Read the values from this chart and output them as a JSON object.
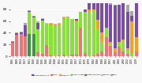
{
  "years": [
    1905,
    1909,
    1913,
    1917,
    1921,
    1926,
    1930,
    1935,
    1940,
    1944,
    1948,
    1952,
    1955,
    1959,
    1963,
    1967,
    1971,
    1975,
    1979,
    1982,
    1986,
    1989,
    1993,
    1997,
    2001,
    2004,
    2008,
    2012,
    2015,
    2019
  ],
  "series_order": [
    "Liberal",
    "United Farmers",
    "Social Credit",
    "NDP/CCF",
    "Conservative/UCP",
    "Labour",
    "Other"
  ],
  "series": {
    "Conservative/UCP": [
      2,
      2,
      2,
      19,
      1,
      2,
      11,
      2,
      0,
      0,
      0,
      0,
      0,
      0,
      0,
      3,
      0,
      4,
      20,
      35,
      38,
      59,
      51,
      63,
      72,
      62,
      72,
      61,
      10,
      63
    ],
    "Liberal": [
      23,
      37,
      38,
      34,
      0,
      0,
      7,
      5,
      19,
      2,
      0,
      2,
      3,
      1,
      3,
      3,
      49,
      6,
      1,
      2,
      4,
      8,
      32,
      18,
      7,
      17,
      9,
      5,
      1,
      9
    ],
    "NDP/CCF": [
      0,
      0,
      0,
      0,
      0,
      0,
      0,
      0,
      1,
      2,
      2,
      2,
      2,
      1,
      0,
      3,
      1,
      0,
      4,
      2,
      16,
      16,
      2,
      3,
      7,
      4,
      2,
      4,
      54,
      24
    ],
    "Social Credit": [
      0,
      0,
      0,
      0,
      38,
      28,
      39,
      56,
      36,
      51,
      52,
      52,
      61,
      65,
      60,
      55,
      25,
      69,
      74,
      75,
      42,
      17,
      15,
      4,
      0,
      4,
      17,
      5,
      4,
      0
    ],
    "United Farmers": [
      0,
      0,
      0,
      0,
      38,
      38,
      0,
      0,
      0,
      0,
      0,
      0,
      0,
      0,
      0,
      0,
      0,
      0,
      0,
      0,
      0,
      0,
      0,
      0,
      0,
      0,
      0,
      0,
      0,
      0
    ],
    "Labour": [
      0,
      0,
      0,
      0,
      0,
      0,
      1,
      2,
      1,
      2,
      1,
      1,
      1,
      0,
      0,
      0,
      0,
      0,
      0,
      0,
      0,
      0,
      0,
      0,
      0,
      0,
      0,
      0,
      0,
      0
    ],
    "Other": [
      1,
      2,
      2,
      4,
      1,
      1,
      2,
      0,
      0,
      0,
      0,
      0,
      0,
      0,
      0,
      0,
      0,
      0,
      0,
      2,
      3,
      0,
      3,
      4,
      1,
      0,
      0,
      12,
      8,
      11
    ]
  },
  "color_map": {
    "Conservative/UCP": "#7B4EA6",
    "Liberal": "#E87878",
    "NDP/CCF": "#F5A020",
    "Social Credit": "#8AE03A",
    "United Farmers": "#3A9A3A",
    "Labour": "#C0C0C0",
    "Other": "#A8A8A8"
  },
  "background_color": "#f8f8f8",
  "grid_color": "#ffffff",
  "bar_width": 0.75,
  "ylim": [
    0,
    90
  ],
  "yticks": [
    0,
    20,
    40,
    60,
    80
  ]
}
